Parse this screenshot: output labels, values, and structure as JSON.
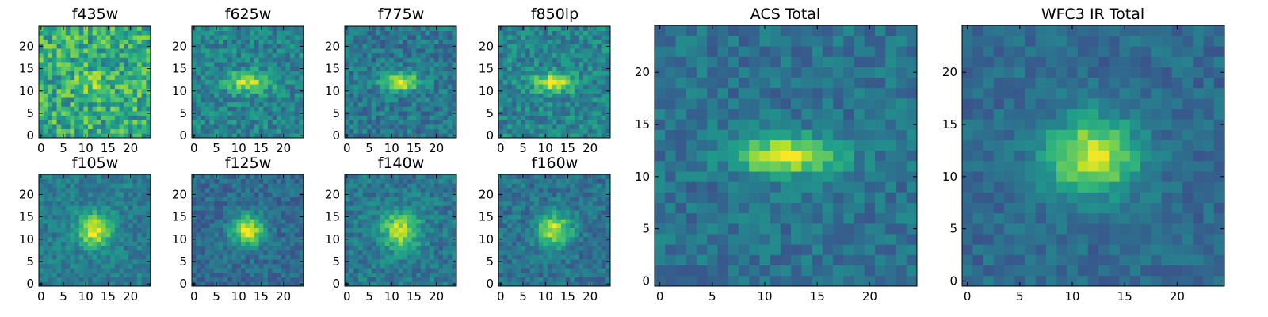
{
  "chart_data": {
    "type": "heatmap",
    "colormap": "viridis",
    "grid_size": 25,
    "panels": [
      {
        "id": "f435w",
        "title": "f435w",
        "xticks": [
          "0",
          "5",
          "10",
          "15",
          "20"
        ],
        "yticks": [
          "0",
          "5",
          "10",
          "15",
          "20"
        ],
        "xlim": [
          0,
          25
        ],
        "ylim": [
          0,
          25
        ],
        "amp": 0.18,
        "sx": 2.5,
        "sy": 1.5,
        "noise": 0.45,
        "base": 0.62,
        "seed": 11
      },
      {
        "id": "f625w",
        "title": "f625w",
        "xticks": [
          "0",
          "5",
          "10",
          "15",
          "20"
        ],
        "yticks": [
          "0",
          "5",
          "10",
          "15",
          "20"
        ],
        "xlim": [
          0,
          25
        ],
        "ylim": [
          0,
          25
        ],
        "amp": 0.45,
        "sx": 3.5,
        "sy": 1.6,
        "noise": 0.3,
        "base": 0.45,
        "seed": 23
      },
      {
        "id": "f775w",
        "title": "f775w",
        "xticks": [
          "0",
          "5",
          "10",
          "15",
          "20"
        ],
        "yticks": [
          "0",
          "5",
          "10",
          "15",
          "20"
        ],
        "xlim": [
          0,
          25
        ],
        "ylim": [
          0,
          25
        ],
        "amp": 0.55,
        "sx": 3.0,
        "sy": 1.4,
        "noise": 0.28,
        "base": 0.4,
        "seed": 37
      },
      {
        "id": "f850lp",
        "title": "f850lp",
        "xticks": [
          "0",
          "5",
          "10",
          "15",
          "20"
        ],
        "yticks": [
          "0",
          "5",
          "10",
          "15",
          "20"
        ],
        "xlim": [
          0,
          25
        ],
        "ylim": [
          0,
          25
        ],
        "amp": 0.5,
        "sx": 3.2,
        "sy": 1.5,
        "noise": 0.3,
        "base": 0.45,
        "seed": 41
      },
      {
        "id": "f105w",
        "title": "f105w",
        "xticks": [
          "0",
          "5",
          "10",
          "15",
          "20"
        ],
        "yticks": [
          "0",
          "5",
          "10",
          "15",
          "20"
        ],
        "xlim": [
          0,
          25
        ],
        "ylim": [
          0,
          25
        ],
        "amp": 0.55,
        "sx": 2.6,
        "sy": 2.6,
        "noise": 0.22,
        "base": 0.42,
        "seed": 53
      },
      {
        "id": "f125w",
        "title": "f125w",
        "xticks": [
          "0",
          "5",
          "10",
          "15",
          "20"
        ],
        "yticks": [
          "0",
          "5",
          "10",
          "15",
          "20"
        ],
        "xlim": [
          0,
          25
        ],
        "ylim": [
          0,
          25
        ],
        "amp": 0.6,
        "sx": 2.6,
        "sy": 2.4,
        "noise": 0.22,
        "base": 0.35,
        "seed": 67
      },
      {
        "id": "f140w",
        "title": "f140w",
        "xticks": [
          "0",
          "5",
          "10",
          "15",
          "20"
        ],
        "yticks": [
          "0",
          "5",
          "10",
          "15",
          "20"
        ],
        "xlim": [
          0,
          25
        ],
        "ylim": [
          0,
          25
        ],
        "amp": 0.5,
        "sx": 3.0,
        "sy": 3.0,
        "noise": 0.25,
        "base": 0.4,
        "seed": 71
      },
      {
        "id": "f160w",
        "title": "f160w",
        "xticks": [
          "0",
          "5",
          "10",
          "15",
          "20"
        ],
        "yticks": [
          "0",
          "5",
          "10",
          "15",
          "20"
        ],
        "xlim": [
          0,
          25
        ],
        "ylim": [
          0,
          25
        ],
        "amp": 0.55,
        "sx": 2.6,
        "sy": 2.6,
        "noise": 0.24,
        "base": 0.38,
        "seed": 83
      },
      {
        "id": "acs-total",
        "title": "ACS Total",
        "xticks": [
          "0",
          "5",
          "10",
          "15",
          "20"
        ],
        "yticks": [
          "0",
          "5",
          "10",
          "15",
          "20"
        ],
        "xlim": [
          0,
          25
        ],
        "ylim": [
          0,
          25
        ],
        "amp": 0.6,
        "sx": 3.3,
        "sy": 1.3,
        "noise": 0.22,
        "base": 0.38,
        "seed": 97
      },
      {
        "id": "wfc3-ir-total",
        "title": "WFC3 IR Total",
        "xticks": [
          "0",
          "5",
          "10",
          "15",
          "20"
        ],
        "yticks": [
          "0",
          "5",
          "10",
          "15",
          "20"
        ],
        "xlim": [
          0,
          25
        ],
        "ylim": [
          0,
          25
        ],
        "amp": 0.6,
        "sx": 3.0,
        "sy": 2.5,
        "noise": 0.18,
        "base": 0.35,
        "seed": 101
      }
    ],
    "source_center": [
      12.5,
      12.5
    ],
    "grid": false,
    "legend": "none"
  }
}
